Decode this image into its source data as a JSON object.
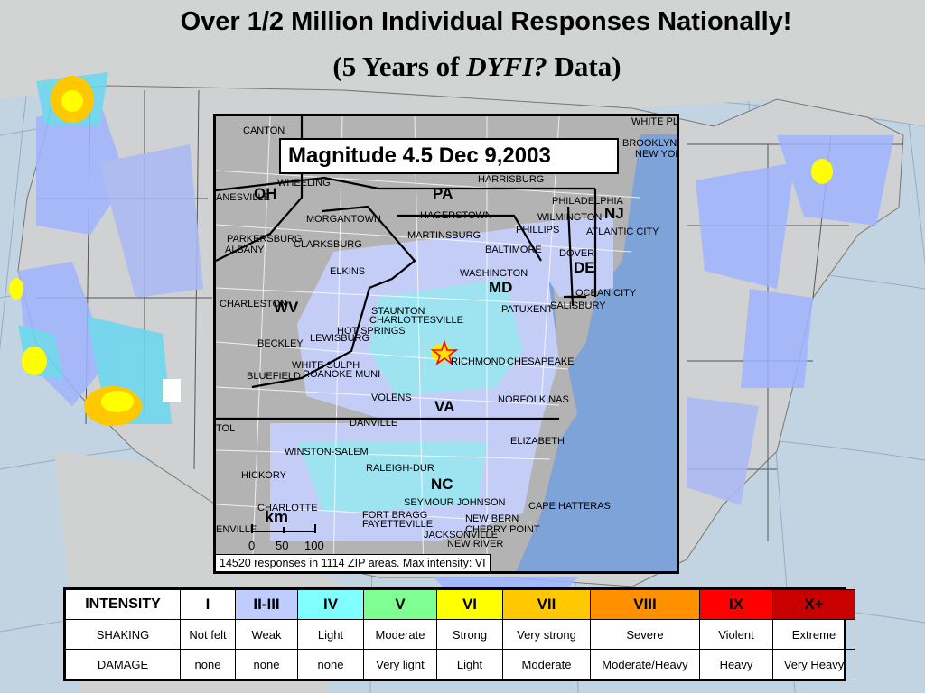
{
  "title": {
    "line1": "Over 1/2 Million Individual Responses Nationally!",
    "line2_prefix": "(5 Years of ",
    "line2_italic": "DYFI?",
    "line2_suffix": " Data)"
  },
  "inset": {
    "event_title": "Magnitude 4.5  Dec 9,2003",
    "footer": "14520 responses in 1114 ZIP areas. Max intensity: VI",
    "scale_unit": "km",
    "scale_ticks": [
      "0",
      "50",
      "100"
    ],
    "states": [
      "OH",
      "PA",
      "NJ",
      "DE",
      "MD",
      "WV",
      "VA",
      "NC"
    ],
    "cities": [
      "CANTON",
      "WHITE PL",
      "BROOKLYN",
      "NEW YORK",
      "WHEELING",
      "HARRISBURG",
      "ANESVILLE",
      "PHILADELPHIA",
      "MORGANTOWN",
      "HAGERSTOWN",
      "WILMINGTON",
      "PARKERSBURG",
      "ALBANY",
      "MARTINSBURG",
      "PHILLIPS",
      "ATLANTIC CITY",
      "CLARKSBURG",
      "BALTIMORE",
      "DOVER",
      "ELKINS",
      "WASHINGTON",
      "OCEAN CITY",
      "CHARLESTON",
      "STAUNTON",
      "PATUXENT",
      "SALISBURY",
      "CHARLOTTESVILLE",
      "BECKLEY",
      "LEWISBURG",
      "HOT SPRINGS",
      "RICHMOND",
      "CHESAPEAKE",
      "WHITE SULPH",
      "ROANOKE MUNI",
      "BLUEFIELD",
      "VOLENS",
      "NORFOLK NAS",
      "TOL",
      "DANVILLE",
      "ELIZABETH",
      "WINSTON-SALEM",
      "RALEIGH-DUR",
      "HICKORY",
      "SEYMOUR JOHNSON",
      "CAPE HATTERAS",
      "CHARLOTTE",
      "FORT BRAGG",
      "FAYETTEVILLE",
      "NEW BERN",
      "CHERRY POINT",
      "ENVILLE",
      "JACKSONVILLE",
      "NEW RIVER"
    ]
  },
  "legend": {
    "headers": [
      "INTENSITY",
      "I",
      "II-III",
      "IV",
      "V",
      "VI",
      "VII",
      "VIII",
      "IX",
      "X+"
    ],
    "colors": [
      "#ffffff",
      "#ffffff",
      "#bfccff",
      "#80ffff",
      "#7fff91",
      "#ffff00",
      "#ffc800",
      "#ff9100",
      "#ff0000",
      "#c80000"
    ],
    "shaking": [
      "SHAKING",
      "Not felt",
      "Weak",
      "Light",
      "Moderate",
      "Strong",
      "Very strong",
      "Severe",
      "Violent",
      "Extreme"
    ],
    "damage": [
      "DAMAGE",
      "none",
      "none",
      "none",
      "Very light",
      "Light",
      "Moderate",
      "Moderate/Heavy",
      "Heavy",
      "Very Heavy"
    ]
  }
}
